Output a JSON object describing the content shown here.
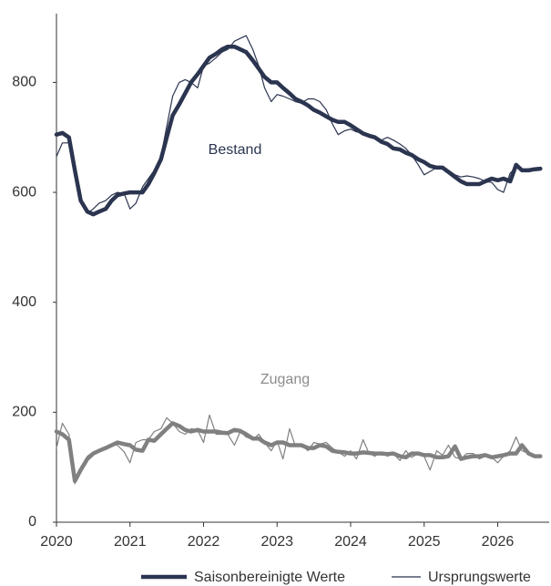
{
  "chart_data": {
    "type": "line",
    "x": [
      2020,
      2020.08,
      2020.17,
      2020.25,
      2020.33,
      2020.42,
      2020.5,
      2020.58,
      2020.67,
      2020.75,
      2020.83,
      2020.92,
      2021,
      2021.08,
      2021.17,
      2021.25,
      2021.33,
      2021.42,
      2021.5,
      2021.58,
      2021.67,
      2021.75,
      2021.83,
      2021.92,
      2022,
      2022.08,
      2022.17,
      2022.25,
      2022.33,
      2022.42,
      2022.5,
      2022.58,
      2022.67,
      2022.75,
      2022.83,
      2022.92,
      2023,
      2023.08,
      2023.17,
      2023.25,
      2023.33,
      2023.42,
      2023.5,
      2023.58,
      2023.67,
      2023.75,
      2023.83,
      2023.92,
      2024,
      2024.08,
      2024.17,
      2024.25,
      2024.33,
      2024.42,
      2024.5,
      2024.58,
      2024.67,
      2024.75,
      2024.83,
      2024.92,
      2025,
      2025.08,
      2025.17,
      2025.25,
      2025.33,
      2025.42,
      2025.5,
      2025.58,
      2025.67,
      2025.75,
      2025.83,
      2025.92,
      2026,
      2026.08,
      2026.17,
      2026.25,
      2026.33,
      2026.42,
      2026.5,
      2026.58
    ],
    "series": [
      {
        "name": "Saisonbereinigte Werte",
        "color": "#2b3550",
        "linewidth": 4.5,
        "values": [
          705,
          708,
          700,
          640,
          585,
          565,
          560,
          565,
          570,
          585,
          595,
          598,
          600,
          600,
          600,
          615,
          635,
          660,
          700,
          740,
          760,
          780,
          800,
          815,
          830,
          845,
          852,
          860,
          865,
          865,
          860,
          855,
          840,
          825,
          810,
          800,
          800,
          790,
          780,
          770,
          765,
          758,
          750,
          745,
          738,
          732,
          728,
          728,
          722,
          715,
          707,
          703,
          700,
          692,
          688,
          680,
          678,
          672,
          668,
          660,
          655,
          648,
          645,
          645,
          637,
          628,
          620,
          615,
          615,
          615,
          620,
          625,
          622,
          625,
          620,
          650,
          640,
          640,
          642,
          643
        ]
      },
      {
        "name": "Ursprungswerte",
        "color": "#2b3550",
        "linewidth": 1.2,
        "values": [
          665,
          690,
          690,
          640,
          580,
          562,
          570,
          580,
          585,
          595,
          600,
          598,
          570,
          580,
          610,
          625,
          640,
          665,
          720,
          775,
          800,
          805,
          800,
          790,
          830,
          835,
          845,
          855,
          860,
          875,
          880,
          885,
          860,
          830,
          790,
          765,
          778,
          775,
          770,
          765,
          762,
          770,
          770,
          765,
          750,
          725,
          705,
          712,
          715,
          710,
          708,
          700,
          700,
          695,
          700,
          695,
          688,
          680,
          668,
          650,
          632,
          638,
          645,
          645,
          640,
          632,
          628,
          630,
          628,
          625,
          620,
          618,
          605,
          600,
          635,
          645,
          640,
          640,
          641,
          642
        ]
      },
      {
        "name": "Saisonbereinigte Werte",
        "color": "#808080",
        "linewidth": 4.5,
        "values": [
          165,
          160,
          150,
          75,
          95,
          115,
          125,
          130,
          135,
          140,
          145,
          142,
          140,
          132,
          130,
          150,
          148,
          160,
          170,
          180,
          175,
          168,
          165,
          168,
          165,
          165,
          165,
          163,
          162,
          168,
          166,
          160,
          152,
          152,
          145,
          140,
          145,
          145,
          140,
          140,
          140,
          135,
          135,
          140,
          138,
          130,
          128,
          127,
          125,
          125,
          127,
          126,
          125,
          125,
          124,
          125,
          120,
          118,
          125,
          125,
          122,
          122,
          118,
          118,
          120,
          138,
          115,
          118,
          120,
          120,
          122,
          118,
          120,
          122,
          125,
          125,
          140,
          125,
          120,
          120
        ]
      },
      {
        "name": "Ursprungswerte",
        "color": "#808080",
        "linewidth": 1.2,
        "values": [
          135,
          180,
          160,
          70,
          100,
          120,
          128,
          132,
          138,
          142,
          140,
          128,
          108,
          145,
          150,
          150,
          165,
          170,
          190,
          180,
          165,
          160,
          170,
          168,
          145,
          195,
          160,
          160,
          160,
          140,
          165,
          155,
          150,
          160,
          145,
          130,
          148,
          115,
          170,
          138,
          140,
          130,
          145,
          142,
          145,
          135,
          128,
          120,
          130,
          115,
          150,
          125,
          120,
          128,
          120,
          125,
          112,
          130,
          118,
          125,
          120,
          95,
          130,
          122,
          140,
          118,
          115,
          125,
          125,
          115,
          120,
          118,
          108,
          120,
          130,
          155,
          130,
          125,
          120,
          120
        ]
      }
    ],
    "annotations": [
      {
        "text": "Bestand",
        "color": "#2b3550"
      },
      {
        "text": "Zugang",
        "color": "#8c8c8c"
      }
    ],
    "xlim": [
      2020,
      2026.7
    ],
    "xticks": [
      2020,
      2021,
      2022,
      2023,
      2024,
      2025,
      2026
    ],
    "ylim": [
      0,
      925
    ],
    "yticks": [
      0,
      200,
      400,
      600,
      800
    ],
    "grid": false
  }
}
